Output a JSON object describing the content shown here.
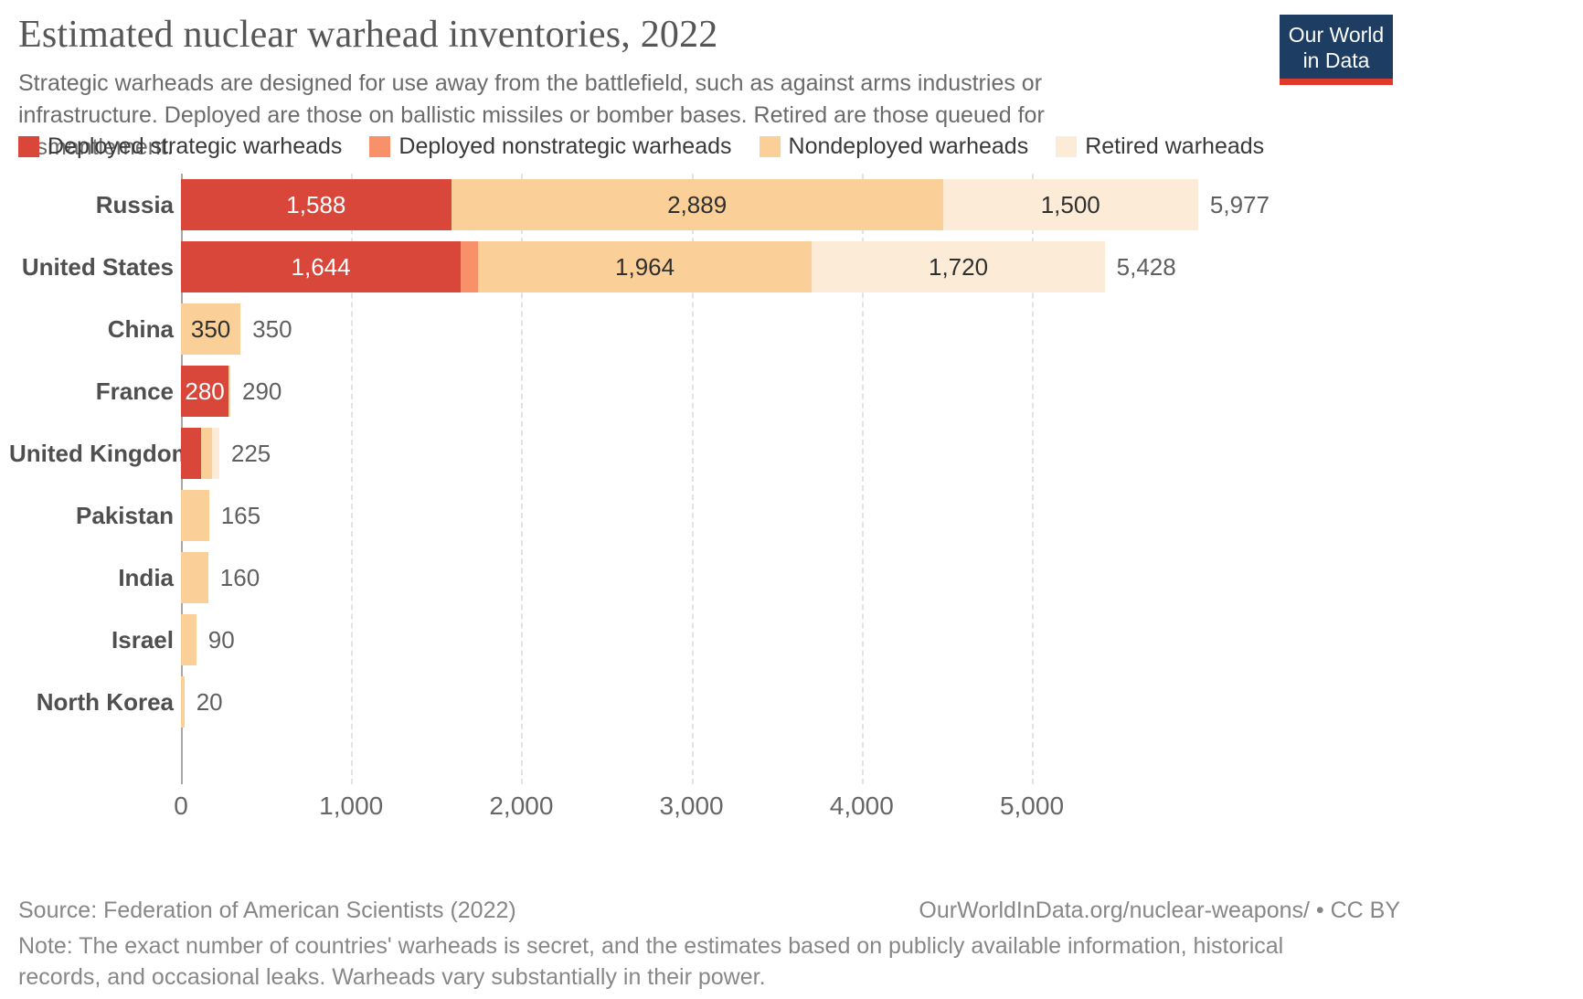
{
  "header": {
    "title": "Estimated nuclear warhead inventories, 2022",
    "subtitle": "Strategic warheads are designed for use away from the battlefield, such as against arms industries or infrastructure. Deployed are those on ballistic missiles or bomber bases. Retired are those queued for dismantlement.",
    "logo": {
      "line1": "Our World",
      "line2": "in Data",
      "bg": "#1d3d63",
      "accent": "#dc3a2a"
    }
  },
  "chart_data": {
    "type": "bar",
    "orientation": "horizontal-stacked",
    "title": "Estimated nuclear warhead inventories, 2022",
    "series_names": [
      "Deployed strategic warheads",
      "Deployed nonstrategic warheads",
      "Nondeployed warheads",
      "Retired warheads"
    ],
    "series_colors": [
      "#d8473a",
      "#f89169",
      "#fad098",
      "#fcecd7"
    ],
    "categories": [
      "Russia",
      "United States",
      "China",
      "France",
      "United Kingdom",
      "Pakistan",
      "India",
      "Israel",
      "North Korea"
    ],
    "rows": [
      {
        "country": "Russia",
        "values": [
          1588,
          0,
          2889,
          1500
        ],
        "segment_labels": [
          "1,588",
          "",
          "2,889",
          "1,500"
        ],
        "total": 5977,
        "total_label": "5,977"
      },
      {
        "country": "United States",
        "values": [
          1644,
          100,
          1964,
          1720
        ],
        "segment_labels": [
          "1,644",
          "",
          "1,964",
          "1,720"
        ],
        "total": 5428,
        "total_label": "5,428"
      },
      {
        "country": "China",
        "values": [
          0,
          0,
          350,
          0
        ],
        "segment_labels": [
          "",
          "",
          "350",
          ""
        ],
        "total": 350,
        "total_label": "350"
      },
      {
        "country": "France",
        "values": [
          280,
          0,
          10,
          0
        ],
        "segment_labels": [
          "280",
          "",
          "",
          ""
        ],
        "total": 290,
        "total_label": "290"
      },
      {
        "country": "United Kingdom",
        "values": [
          120,
          0,
          60,
          45
        ],
        "segment_labels": [
          "",
          "",
          "",
          ""
        ],
        "total": 225,
        "total_label": "225"
      },
      {
        "country": "Pakistan",
        "values": [
          0,
          0,
          165,
          0
        ],
        "segment_labels": [
          "",
          "",
          "",
          ""
        ],
        "total": 165,
        "total_label": "165"
      },
      {
        "country": "India",
        "values": [
          0,
          0,
          160,
          0
        ],
        "segment_labels": [
          "",
          "",
          "",
          ""
        ],
        "total": 160,
        "total_label": "160"
      },
      {
        "country": "Israel",
        "values": [
          0,
          0,
          90,
          0
        ],
        "segment_labels": [
          "",
          "",
          "",
          ""
        ],
        "total": 90,
        "total_label": "90"
      },
      {
        "country": "North Korea",
        "values": [
          0,
          0,
          20,
          0
        ],
        "segment_labels": [
          "",
          "",
          "",
          ""
        ],
        "total": 20,
        "total_label": "20"
      }
    ],
    "xticks": [
      0,
      1000,
      2000,
      3000,
      4000,
      5000
    ],
    "xtick_labels": [
      "0",
      "1,000",
      "2,000",
      "3,000",
      "4,000",
      "5,000"
    ],
    "xlim": [
      0,
      6000
    ],
    "grid": "dashed-vertical",
    "legend_position": "top",
    "label_color_on_dark": "#ffffff",
    "label_color_on_light": "#2f2f2f"
  },
  "footer": {
    "source": "Source: Federation of American Scientists (2022)",
    "attribution": "OurWorldInData.org/nuclear-weapons/ • CC BY",
    "note": "Note: The exact number of countries' warheads is secret, and the estimates based on publicly available information, historical records, and occasional leaks. Warheads vary substantially in their power."
  }
}
